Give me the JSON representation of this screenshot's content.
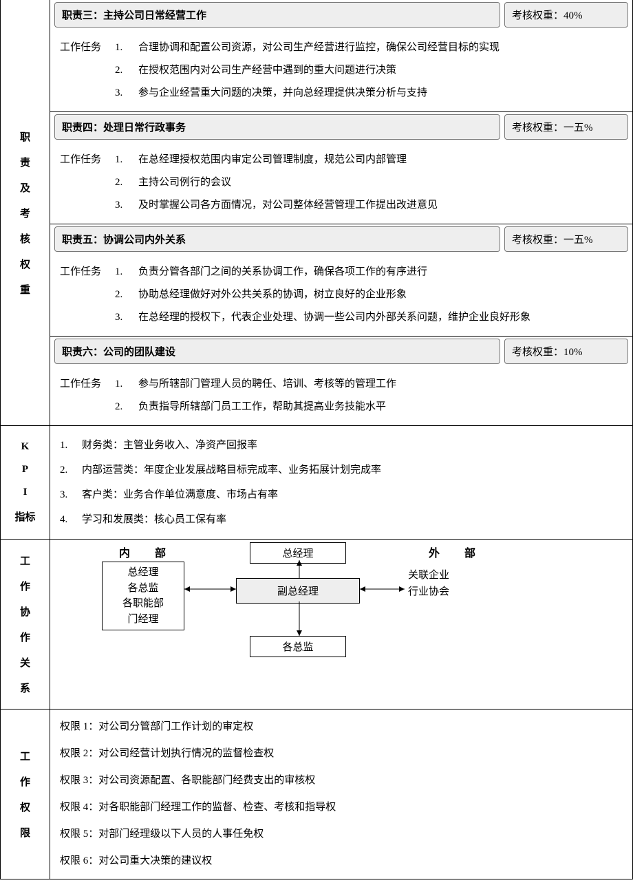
{
  "sidelabels": {
    "duties": [
      "职",
      "责",
      "及",
      "考",
      "核",
      "权",
      "重"
    ],
    "kpi": [
      "K",
      "P",
      "I",
      "指标"
    ],
    "coop": [
      "工",
      "作",
      "协",
      "作",
      "关",
      "系"
    ],
    "perm": [
      "工",
      "作",
      "权",
      "限"
    ]
  },
  "duties": [
    {
      "title": "职责三：主持公司日常经营工作",
      "weight": "考核权重：40%",
      "taskLabel": "工作任务",
      "tasks": [
        {
          "n": "1.",
          "t": "合理协调和配置公司资源，对公司生产经营进行监控，确保公司经营目标的实现"
        },
        {
          "n": "2.",
          "t": "在授权范围内对公司生产经营中遇到的重大问题进行决策"
        },
        {
          "n": "3.",
          "t": "参与企业经营重大问题的决策，并向总经理提供决策分析与支持"
        }
      ]
    },
    {
      "title": "职责四：处理日常行政事务",
      "weight": "考核权重：一五%",
      "taskLabel": "工作任务",
      "tasks": [
        {
          "n": "1.",
          "t": "在总经理授权范围内审定公司管理制度，规范公司内部管理"
        },
        {
          "n": "2.",
          "t": "主持公司例行的会议"
        },
        {
          "n": "3.",
          "t": "及时掌握公司各方面情况，对公司整体经营管理工作提出改进意见"
        }
      ]
    },
    {
      "title": "职责五：协调公司内外关系",
      "weight": "考核权重：一五%",
      "taskLabel": "工作任务",
      "tasks": [
        {
          "n": "1.",
          "t": "负责分管各部门之间的关系协调工作，确保各项工作的有序进行"
        },
        {
          "n": "2.",
          "t": "协助总经理做好对外公共关系的协调，树立良好的企业形象"
        },
        {
          "n": "3.",
          "t": "在总经理的授权下，代表企业处理、协调一些公司内外部关系问题，维护企业良好形象"
        }
      ]
    },
    {
      "title": "职责六：公司的团队建设",
      "weight": "考核权重：10%",
      "taskLabel": "工作任务",
      "tasks": [
        {
          "n": "1.",
          "t": "参与所辖部门管理人员的聘任、培训、考核等的管理工作"
        },
        {
          "n": "2.",
          "t": "负责指导所辖部门员工工作，帮助其提高业务技能水平"
        }
      ]
    }
  ],
  "kpi": [
    {
      "n": "1.",
      "t": "财务类：主管业务收入、净资产回报率"
    },
    {
      "n": "2.",
      "t": "内部运营类：年度企业发展战略目标完成率、业务拓展计划完成率"
    },
    {
      "n": "3.",
      "t": "客户类：业务合作单位满意度、市场占有率"
    },
    {
      "n": "4.",
      "t": "学习和发展类：核心员工保有率"
    }
  ],
  "diagram": {
    "internalLabel": "内　部",
    "externalLabel": "外　部",
    "internalList": "总经理\n各总监\n各职能部\n门经理",
    "externalList": "关联企业\n行业协会",
    "top": "总经理",
    "center": "副总经理",
    "bottom": "各总监"
  },
  "permissions": [
    "权限 1：对公司分管部门工作计划的审定权",
    "权限 2：对公司经营计划执行情况的监督检查权",
    "权限 3：对公司资源配置、各职能部门经费支出的审核权",
    "权限 4：对各职能部门经理工作的监督、检查、考核和指导权",
    "权限 5：对部门经理级以下人员的人事任免权",
    "权限 6：对公司重大决策的建议权"
  ],
  "colors": {
    "headerBg": "#eeeeee",
    "border": "#000000"
  }
}
